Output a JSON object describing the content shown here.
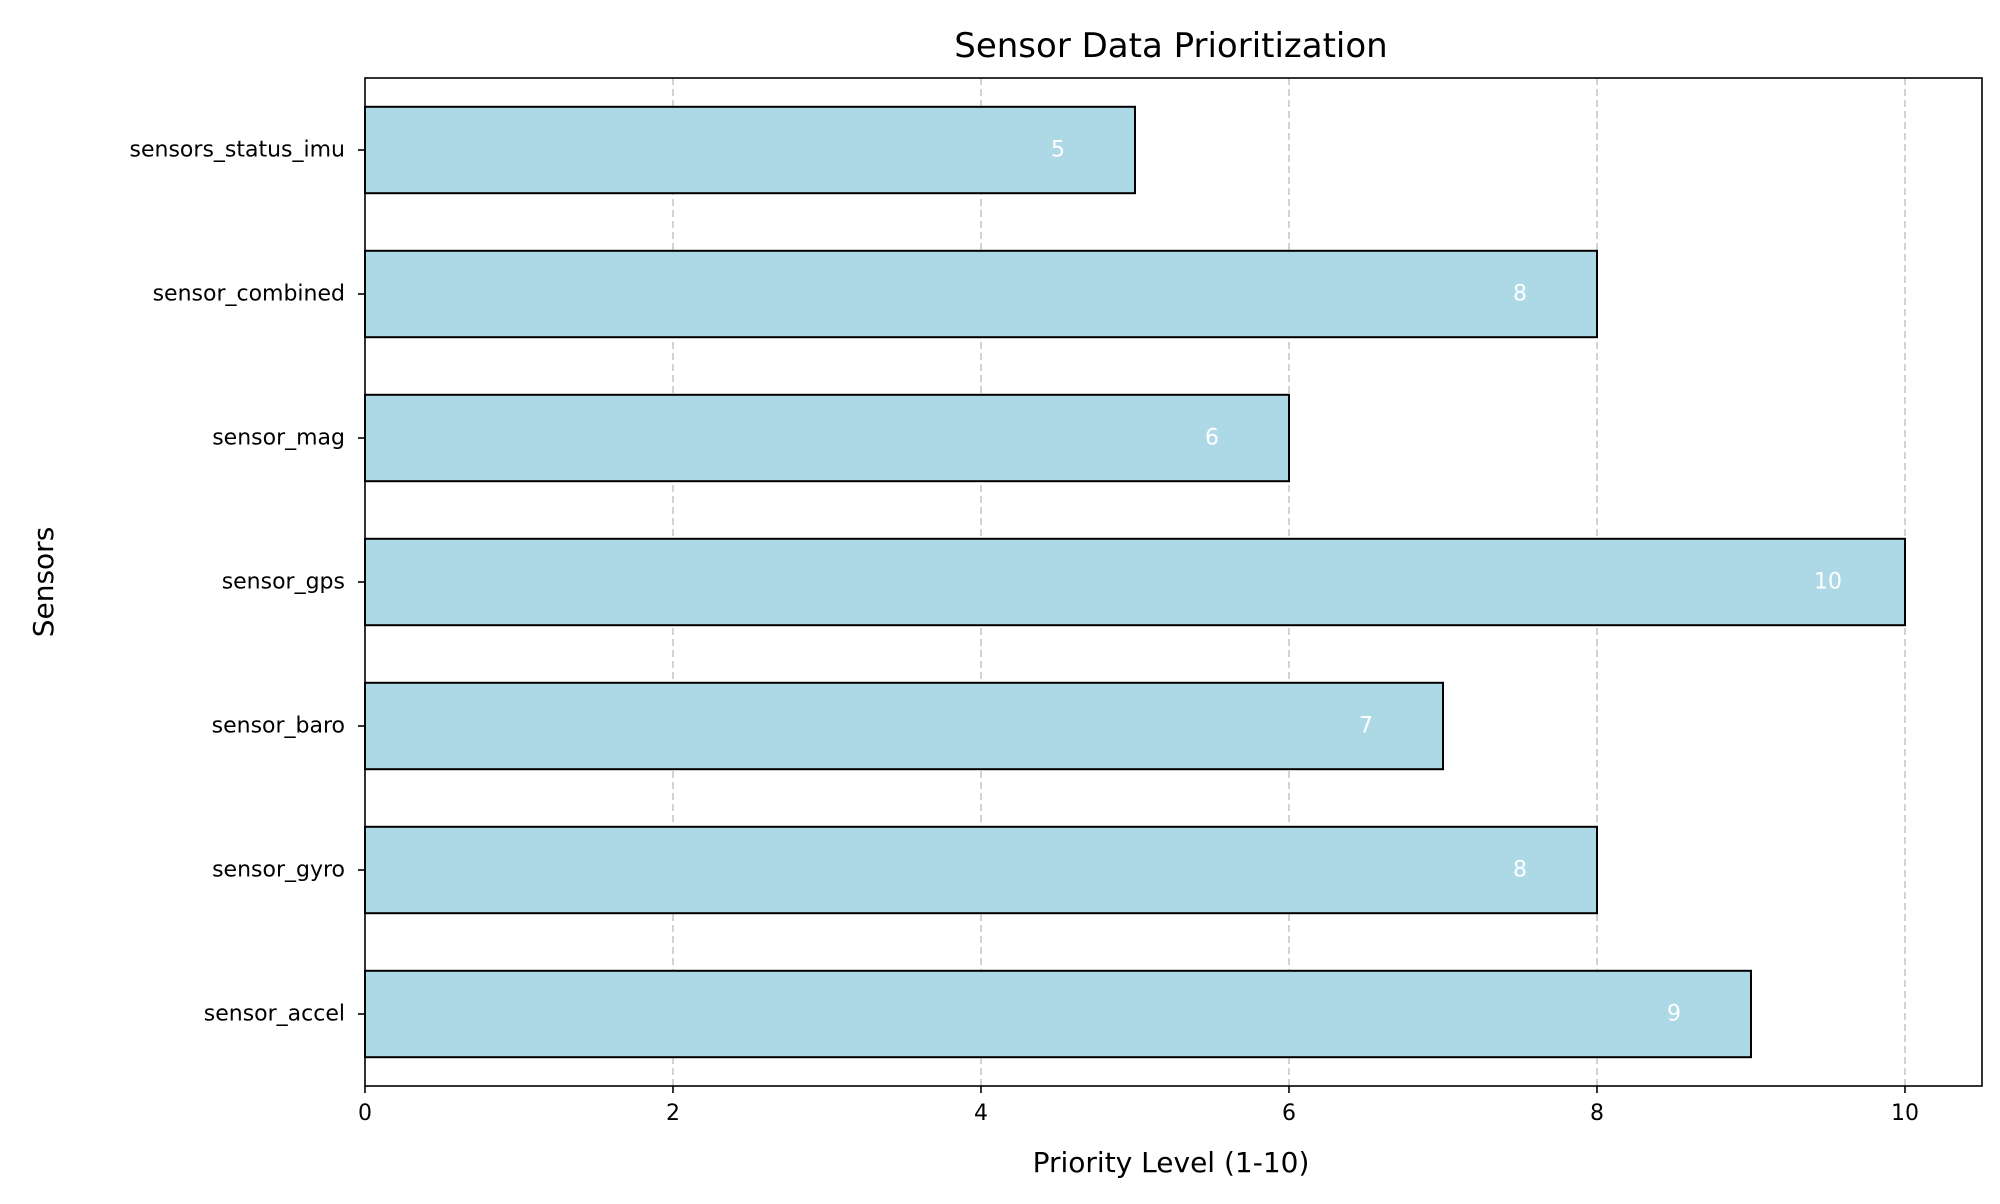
{
  "chart_data": {
    "type": "bar",
    "orientation": "horizontal",
    "title": "Sensor Data Prioritization",
    "xlabel": "Priority Level (1-10)",
    "ylabel": "Sensors",
    "categories": [
      "sensor_accel",
      "sensor_gyro",
      "sensor_baro",
      "sensor_gps",
      "sensor_mag",
      "sensor_combined",
      "sensors_status_imu"
    ],
    "values": [
      9,
      8,
      7,
      10,
      6,
      8,
      5
    ],
    "value_labels": [
      "9",
      "8",
      "7",
      "10",
      "6",
      "8",
      "5"
    ],
    "xlim": [
      0,
      10.5
    ],
    "xticks": [
      "0",
      "2",
      "4",
      "6",
      "8",
      "10"
    ],
    "xtick_values": [
      0,
      2,
      4,
      6,
      8,
      10
    ],
    "grid": "vertical dashed",
    "legend": "none",
    "colors": {
      "bar_fill": "#add8e6",
      "bar_edge": "#000000",
      "bar_label": "#ffffff",
      "grid": "#c8c8c8"
    }
  }
}
